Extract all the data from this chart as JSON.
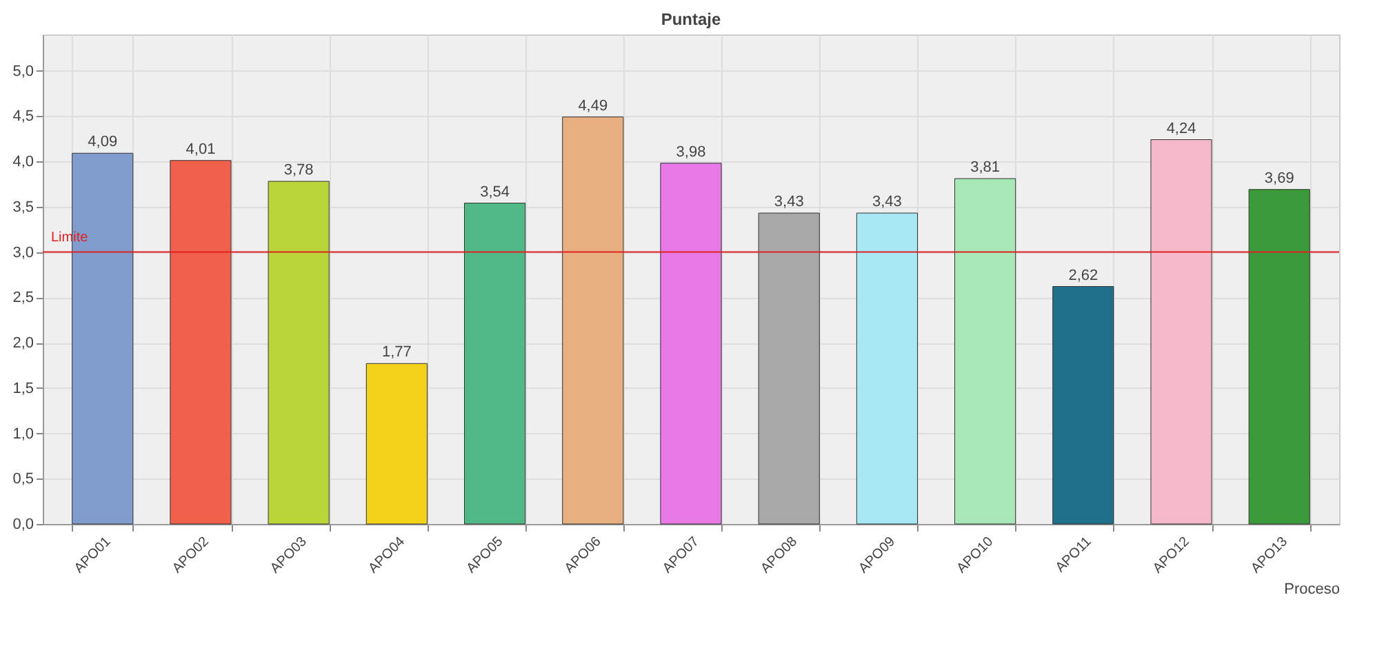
{
  "chart_data": {
    "type": "bar",
    "title": "Puntaje",
    "xlabel": "Proceso",
    "categories": [
      "APO01",
      "APO02",
      "APO03",
      "APO04",
      "APO05",
      "APO06",
      "APO07",
      "APO08",
      "APO09",
      "APO10",
      "APO11",
      "APO12",
      "APO13"
    ],
    "values": [
      4.09,
      4.01,
      3.78,
      1.77,
      3.54,
      4.49,
      3.98,
      3.43,
      3.43,
      3.81,
      2.62,
      4.24,
      3.69
    ],
    "value_labels": [
      "4,09",
      "4,01",
      "3,78",
      "1,77",
      "3,54",
      "4,49",
      "3,98",
      "3,43",
      "3,43",
      "3,81",
      "2,62",
      "4,24",
      "3,69"
    ],
    "colors": [
      "#7f9ccc",
      "#f0604a",
      "#b8d63a",
      "#f5d21a",
      "#4fb884",
      "#e8b080",
      "#e87ae8",
      "#a8a8a8",
      "#a8e8f5",
      "#a8e8b8",
      "#1f6f8a",
      "#f5b8c8",
      "#3a9a3a"
    ],
    "ylim": [
      0,
      5.4
    ],
    "yticks": [
      {
        "value": 0,
        "label": "0,0"
      },
      {
        "value": 0.5,
        "label": "0,5"
      },
      {
        "value": 1,
        "label": "1,0"
      },
      {
        "value": 1.5,
        "label": "1,5"
      },
      {
        "value": 2,
        "label": "2,0"
      },
      {
        "value": 2.5,
        "label": "2,5"
      },
      {
        "value": 3,
        "label": "3,0"
      },
      {
        "value": 3.5,
        "label": "3,5"
      },
      {
        "value": 4,
        "label": "4,0"
      },
      {
        "value": 4.5,
        "label": "4,5"
      },
      {
        "value": 5,
        "label": "5,0"
      }
    ],
    "ref_lines": [
      {
        "axis": "y",
        "value": 3,
        "label": "Limite",
        "color": "#e02020"
      }
    ],
    "grid": true
  }
}
